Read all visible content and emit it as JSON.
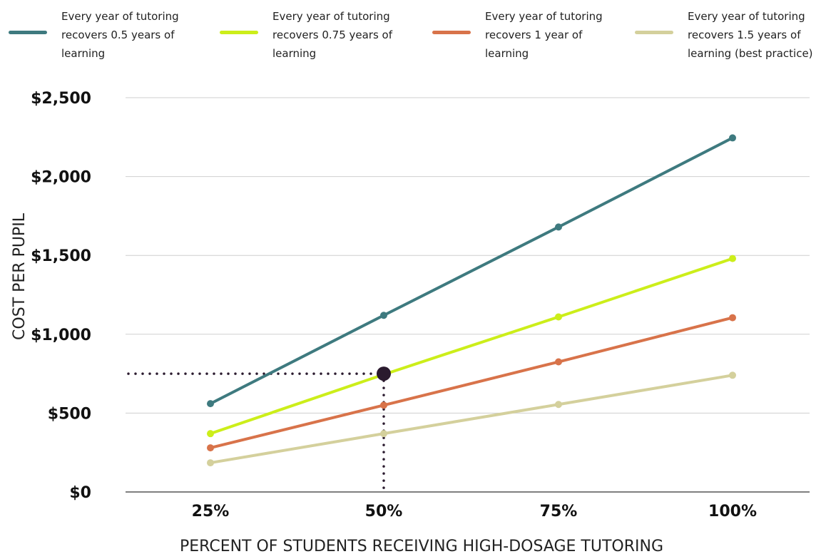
{
  "chart_data": {
    "type": "line",
    "title": "",
    "xlabel": "PERCENT OF STUDENTS RECEIVING HIGH-DOSAGE TUTORING",
    "ylabel": "COST PER PUPIL",
    "categories": [
      "25%",
      "50%",
      "75%",
      "100%"
    ],
    "x_values": [
      25,
      50,
      75,
      100
    ],
    "y_ticks": [
      0,
      500,
      1000,
      1500,
      2000,
      2500
    ],
    "y_tick_labels": [
      "$0",
      "$500",
      "$1,000",
      "$1,500",
      "$2,000",
      "$2,500"
    ],
    "ylim": [
      0,
      2500
    ],
    "grid": "horizontal",
    "legend_position": "top",
    "series": [
      {
        "name": "Every year of tutoring\nrecovers 0.5 years of\nlearning",
        "color": "#3e7a7f",
        "values": [
          560,
          1120,
          1680,
          2245
        ]
      },
      {
        "name": "Every year of tutoring\nrecovers 0.75 years of\nlearning",
        "color": "#ccee1a",
        "values": [
          370,
          745,
          1110,
          1480
        ]
      },
      {
        "name": "Every year of tutoring\nrecovers 1 year of\nlearning",
        "color": "#d8734a",
        "values": [
          280,
          550,
          825,
          1105
        ]
      },
      {
        "name": "Every year of tutoring\nrecovers 1.5 years of\nlearning (best practice)",
        "color": "#d4d09c",
        "values": [
          185,
          370,
          555,
          740
        ]
      }
    ],
    "annotation": {
      "x": 50,
      "y": 750,
      "color": "#2a1a2e"
    }
  }
}
